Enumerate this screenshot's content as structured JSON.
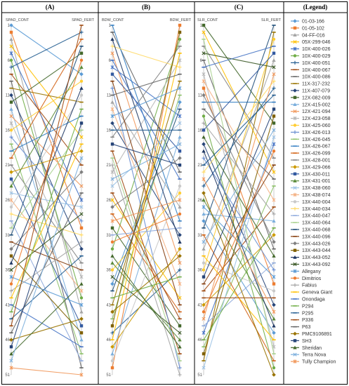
{
  "headers": [
    "(A)",
    "(B)",
    "(C)",
    "(Legend)"
  ],
  "chart_data": {
    "type": "line",
    "panels": [
      {
        "label": "(A)",
        "left_axis": "SPAD_CONT",
        "right_axis": "SPAD_FERT"
      },
      {
        "label": "(B)",
        "left_axis": "BDW_CONT",
        "right_axis": "BDW_FERT"
      },
      {
        "label": "(C)",
        "left_axis": "SLR_CONT",
        "right_axis": "SLR_FERT"
      }
    ],
    "rank_ticks": [
      "1",
      "6",
      "11",
      "16",
      "21",
      "26",
      "31",
      "36",
      "41",
      "46",
      "51"
    ],
    "ylim": [
      1,
      51
    ],
    "y_reversed": true,
    "series": [
      {
        "name": "01-03-166",
        "color": "#5b9bd5",
        "marker": "diamond",
        "ranks": [
          [
            1,
            8
          ],
          [
            38,
            12
          ],
          [
            29,
            45
          ]
        ]
      },
      {
        "name": "01-05-102",
        "color": "#ed7d31",
        "marker": "square",
        "ranks": [
          [
            2,
            30
          ],
          [
            50,
            1
          ],
          [
            10,
            38
          ]
        ]
      },
      {
        "name": "04-FF-016",
        "color": "#a5a5a5",
        "marker": "triangle",
        "ranks": [
          [
            3,
            42
          ],
          [
            12,
            27
          ],
          [
            33,
            6
          ]
        ]
      },
      {
        "name": "05X-299-046",
        "color": "#ffc000",
        "marker": "x",
        "ranks": [
          [
            4,
            17
          ],
          [
            26,
            40
          ],
          [
            2,
            22
          ]
        ]
      },
      {
        "name": "10X-400-026",
        "color": "#4472c4",
        "marker": "star",
        "ranks": [
          [
            5,
            26
          ],
          [
            7,
            14
          ],
          [
            45,
            18
          ]
        ]
      },
      {
        "name": "10X-400-029",
        "color": "#70ad47",
        "marker": "circle",
        "ranks": [
          [
            6,
            40
          ],
          [
            33,
            3
          ],
          [
            14,
            50
          ]
        ]
      },
      {
        "name": "10X-400-051",
        "color": "#255e91",
        "marker": "plus",
        "ranks": [
          [
            7,
            2
          ],
          [
            45,
            36
          ],
          [
            24,
            10
          ]
        ]
      },
      {
        "name": "10X-400-067",
        "color": "#9e480e",
        "marker": "dash",
        "ranks": [
          [
            8,
            21
          ],
          [
            19,
            48
          ],
          [
            39,
            27
          ]
        ]
      },
      {
        "name": "10X-400-086",
        "color": "#636363",
        "marker": "dash",
        "ranks": [
          [
            9,
            50
          ],
          [
            2,
            22
          ],
          [
            6,
            33
          ]
        ]
      },
      {
        "name": "11X-317-232",
        "color": "#997300",
        "marker": "dash",
        "ranks": [
          [
            10,
            12
          ],
          [
            41,
            9
          ],
          [
            49,
            2
          ]
        ]
      },
      {
        "name": "11X-407-079",
        "color": "#264478",
        "marker": "diamond",
        "ranks": [
          [
            11,
            33
          ],
          [
            15,
            31
          ],
          [
            18,
            41
          ]
        ]
      },
      {
        "name": "12X-082-009",
        "color": "#43682b",
        "marker": "square",
        "ranks": [
          [
            12,
            5
          ],
          [
            30,
            44
          ],
          [
            1,
            15
          ]
        ]
      },
      {
        "name": "12X-415-002",
        "color": "#7cafdd",
        "marker": "triangle",
        "ranks": [
          [
            13,
            46
          ],
          [
            48,
            17
          ],
          [
            28,
            29
          ]
        ]
      },
      {
        "name": "12X-421-094",
        "color": "#f1975a",
        "marker": "x",
        "ranks": [
          [
            14,
            24
          ],
          [
            5,
            35
          ],
          [
            43,
            8
          ]
        ]
      },
      {
        "name": "12X-423-058",
        "color": "#b7b7b7",
        "marker": "star",
        "ranks": [
          [
            15,
            37
          ],
          [
            22,
            6
          ],
          [
            8,
            47
          ]
        ]
      },
      {
        "name": "13X-425-060",
        "color": "#ffcd33",
        "marker": "circle",
        "ranks": [
          [
            16,
            9
          ],
          [
            36,
            25
          ],
          [
            36,
            3
          ]
        ]
      },
      {
        "name": "13X-426-013",
        "color": "#698ed0",
        "marker": "plus",
        "ranks": [
          [
            17,
            29
          ],
          [
            10,
            50
          ],
          [
            20,
            36
          ]
        ]
      },
      {
        "name": "13X-426-045",
        "color": "#8cc168",
        "marker": "dash",
        "ranks": [
          [
            18,
            48
          ],
          [
            43,
            11
          ],
          [
            47,
            24
          ]
        ]
      },
      {
        "name": "13X-426-067",
        "color": "#327dc2",
        "marker": "dash",
        "ranks": [
          [
            19,
            14
          ],
          [
            1,
            29
          ],
          [
            12,
            12
          ]
        ]
      },
      {
        "name": "13X-426-099",
        "color": "#d26012",
        "marker": "dash",
        "ranks": [
          [
            20,
            3
          ],
          [
            28,
            42
          ],
          [
            31,
            49
          ]
        ]
      },
      {
        "name": "13X-428-001",
        "color": "#848484",
        "marker": "dash",
        "ranks": [
          [
            21,
            35
          ],
          [
            17,
            4
          ],
          [
            4,
            20
          ]
        ]
      },
      {
        "name": "13X-429-066",
        "color": "#cc9a00",
        "marker": "diamond",
        "ranks": [
          [
            22,
            19
          ],
          [
            47,
            33
          ],
          [
            41,
            31
          ]
        ]
      },
      {
        "name": "13X-430-011",
        "color": "#335aa1",
        "marker": "square",
        "ranks": [
          [
            23,
            44
          ],
          [
            8,
            19
          ],
          [
            16,
            5
          ]
        ]
      },
      {
        "name": "13X-431-001",
        "color": "#5a8a39",
        "marker": "triangle",
        "ranks": [
          [
            24,
            7
          ],
          [
            35,
            46
          ],
          [
            26,
            43
          ]
        ]
      },
      {
        "name": "13X-438-060",
        "color": "#9dc3e6",
        "marker": "x",
        "ranks": [
          [
            25,
            27
          ],
          [
            24,
            15
          ],
          [
            50,
            17
          ]
        ]
      },
      {
        "name": "13X-438-074",
        "color": "#f4b183",
        "marker": "star",
        "ranks": [
          [
            26,
            39
          ],
          [
            13,
            38
          ],
          [
            9,
            26
          ]
        ]
      },
      {
        "name": "13X-440-004",
        "color": "#c9c9c9",
        "marker": "circle",
        "ranks": [
          [
            27,
            11
          ],
          [
            49,
            24
          ],
          [
            35,
            39
          ]
        ]
      },
      {
        "name": "13X-440-034",
        "color": "#ffd966",
        "marker": "plus",
        "ranks": [
          [
            28,
            31
          ],
          [
            4,
            7
          ],
          [
            22,
            9
          ]
        ]
      },
      {
        "name": "13X-440-047",
        "color": "#8faadc",
        "marker": "dash",
        "ranks": [
          [
            29,
            49
          ],
          [
            31,
            30
          ],
          [
            44,
            35
          ]
        ]
      },
      {
        "name": "13X-440-064",
        "color": "#a9d18e",
        "marker": "dash",
        "ranks": [
          [
            30,
            16
          ],
          [
            20,
            49
          ],
          [
            3,
            48
          ]
        ]
      },
      {
        "name": "13X-440-068",
        "color": "#1f4e79",
        "marker": "dash",
        "ranks": [
          [
            31,
            4
          ],
          [
            39,
            13
          ],
          [
            30,
            1
          ]
        ]
      },
      {
        "name": "13X-440-096",
        "color": "#843c0c",
        "marker": "dash",
        "ranks": [
          [
            32,
            36
          ],
          [
            9,
            41
          ],
          [
            38,
            21
          ]
        ]
      },
      {
        "name": "13X-443-026",
        "color": "#7f7f7f",
        "marker": "diamond",
        "ranks": [
          [
            33,
            22
          ],
          [
            27,
            20
          ],
          [
            11,
            32
          ]
        ]
      },
      {
        "name": "13X-443-044",
        "color": "#7f6000",
        "marker": "square",
        "ranks": [
          [
            34,
            45
          ],
          [
            44,
            2
          ],
          [
            48,
            14
          ]
        ]
      },
      {
        "name": "13X-443-052",
        "color": "#203864",
        "marker": "triangle",
        "ranks": [
          [
            35,
            10
          ],
          [
            3,
            32
          ],
          [
            19,
            44
          ]
        ]
      },
      {
        "name": "13X-443-092",
        "color": "#385723",
        "marker": "x",
        "ranks": [
          [
            36,
            28
          ],
          [
            37,
            45
          ],
          [
            5,
            7
          ]
        ]
      },
      {
        "name": "Allegany",
        "color": "#5b9bd5",
        "marker": "star",
        "ranks": [
          [
            37,
            41
          ],
          [
            14,
            10
          ],
          [
            27,
            37
          ]
        ]
      },
      {
        "name": "Dimitrios",
        "color": "#ed7d31",
        "marker": "circle",
        "ranks": [
          [
            38,
            6
          ],
          [
            32,
            28
          ],
          [
            42,
            19
          ]
        ]
      },
      {
        "name": "Fabius",
        "color": "#a5a5a5",
        "marker": "plus",
        "ranks": [
          [
            39,
            32
          ],
          [
            21,
            51
          ],
          [
            15,
            28
          ]
        ]
      },
      {
        "name": "Geneva Giant",
        "color": "#ffc000",
        "marker": "dash",
        "ranks": [
          [
            40,
            18
          ],
          [
            46,
            5
          ],
          [
            34,
            46
          ]
        ]
      },
      {
        "name": "Onondaga",
        "color": "#4472c4",
        "marker": "dash",
        "ranks": [
          [
            41,
            47
          ],
          [
            6,
            23
          ],
          [
            7,
            4
          ]
        ]
      },
      {
        "name": "P294",
        "color": "#70ad47",
        "marker": "dash",
        "ranks": [
          [
            42,
            13
          ],
          [
            40,
            37
          ],
          [
            46,
            30
          ]
        ]
      },
      {
        "name": "P295",
        "color": "#255e91",
        "marker": "dash",
        "ranks": [
          [
            43,
            34
          ],
          [
            16,
            16
          ],
          [
            21,
            11
          ]
        ]
      },
      {
        "name": "P336",
        "color": "#9e480e",
        "marker": "dash",
        "ranks": [
          [
            44,
            1
          ],
          [
            25,
            43
          ],
          [
            40,
            40
          ]
        ]
      },
      {
        "name": "P63",
        "color": "#636363",
        "marker": "dash",
        "ranks": [
          [
            45,
            25
          ],
          [
            11,
            8
          ],
          [
            13,
            23
          ]
        ]
      },
      {
        "name": "PMC9106891",
        "color": "#997300",
        "marker": "diamond",
        "ranks": [
          [
            46,
            43
          ],
          [
            42,
            34
          ],
          [
            25,
            51
          ]
        ]
      },
      {
        "name": "SH3",
        "color": "#264478",
        "marker": "square",
        "ranks": [
          [
            47,
            15
          ],
          [
            18,
            21
          ],
          [
            37,
            13
          ]
        ]
      },
      {
        "name": "Sheridan",
        "color": "#43682b",
        "marker": "triangle",
        "ranks": [
          [
            48,
            38
          ],
          [
            34,
            47
          ],
          [
            17,
            34
          ]
        ]
      },
      {
        "name": "Terra Nova",
        "color": "#7cafdd",
        "marker": "x",
        "ranks": [
          [
            49,
            20
          ],
          [
            23,
            18
          ],
          [
            32,
            16
          ]
        ]
      },
      {
        "name": "Tully Champion",
        "color": "#f1975a",
        "marker": "star",
        "ranks": [
          [
            50,
            51
          ],
          [
            29,
            26
          ],
          [
            23,
            42
          ]
        ]
      }
    ]
  }
}
